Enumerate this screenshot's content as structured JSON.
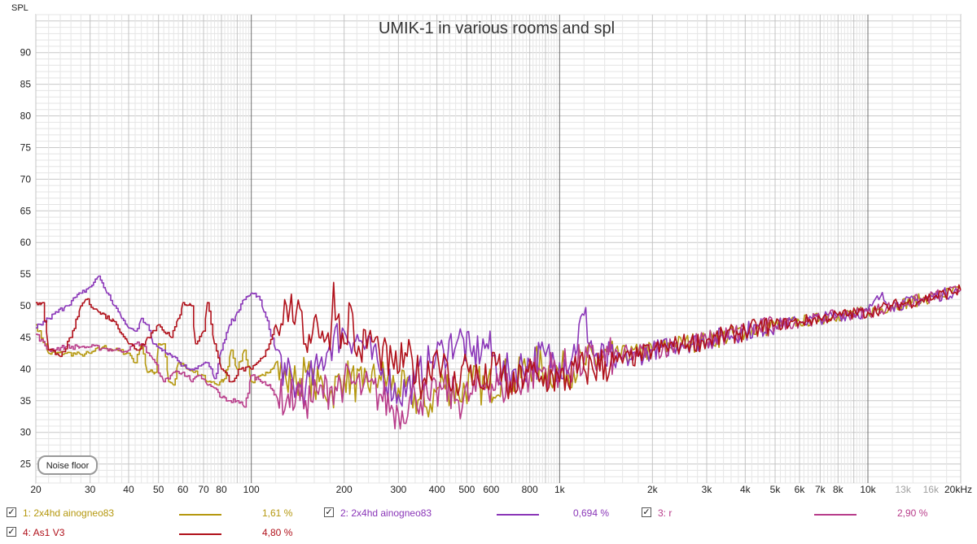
{
  "chart_data": {
    "type": "line",
    "title": "UMIK-1 in various rooms and spl",
    "ylabel": "SPL",
    "xunit": "Hz",
    "xscale": "log",
    "xlim": [
      20,
      20000
    ],
    "ylim": [
      22,
      96
    ],
    "grid": true,
    "yticks": [
      25,
      30,
      35,
      40,
      45,
      50,
      55,
      60,
      65,
      70,
      75,
      80,
      85,
      90
    ],
    "xticks": [
      {
        "v": 20,
        "label": "20"
      },
      {
        "v": 30,
        "label": "30"
      },
      {
        "v": 40,
        "label": "40"
      },
      {
        "v": 50,
        "label": "50"
      },
      {
        "v": 60,
        "label": "60"
      },
      {
        "v": 70,
        "label": "70"
      },
      {
        "v": 80,
        "label": "80"
      },
      {
        "v": 100,
        "label": "100"
      },
      {
        "v": 200,
        "label": "200"
      },
      {
        "v": 300,
        "label": "300"
      },
      {
        "v": 400,
        "label": "400"
      },
      {
        "v": 500,
        "label": "500"
      },
      {
        "v": 600,
        "label": "600"
      },
      {
        "v": 800,
        "label": "800"
      },
      {
        "v": 1000,
        "label": "1k"
      },
      {
        "v": 2000,
        "label": "2k"
      },
      {
        "v": 3000,
        "label": "3k"
      },
      {
        "v": 4000,
        "label": "4k"
      },
      {
        "v": 5000,
        "label": "5k"
      },
      {
        "v": 6000,
        "label": "6k"
      },
      {
        "v": 7000,
        "label": "7k"
      },
      {
        "v": 8000,
        "label": "8k"
      },
      {
        "v": 10000,
        "label": "10k"
      },
      {
        "v": 13000,
        "label": "13k",
        "dim": true
      },
      {
        "v": 16000,
        "label": "16k",
        "dim": true
      },
      {
        "v": 20000,
        "label": "20kHz"
      }
    ],
    "annotation": "Noise floor",
    "series": [
      {
        "id": 1,
        "name": "1: 2x4hd ainogneo83",
        "value_label": "1,61 %",
        "color": "#b5980f",
        "points": [
          [
            20,
            47
          ],
          [
            22,
            42.5
          ],
          [
            25,
            42.5
          ],
          [
            28,
            42.3
          ],
          [
            30,
            42.5
          ],
          [
            33,
            43.5
          ],
          [
            36,
            43
          ],
          [
            40,
            42.5
          ],
          [
            42,
            41
          ],
          [
            44,
            44
          ],
          [
            46,
            39.5
          ],
          [
            49,
            39.5
          ],
          [
            50,
            44
          ],
          [
            52,
            44
          ],
          [
            54,
            38
          ],
          [
            56,
            37.5
          ],
          [
            58,
            41
          ],
          [
            62,
            40
          ],
          [
            65,
            39.5
          ],
          [
            68,
            39
          ],
          [
            70,
            39
          ],
          [
            72,
            38
          ],
          [
            75,
            38
          ],
          [
            78,
            37.5
          ],
          [
            82,
            38.5
          ],
          [
            86,
            43
          ],
          [
            90,
            40
          ],
          [
            95,
            43
          ],
          [
            100,
            38
          ],
          [
            110,
            39
          ],
          [
            120,
            41
          ],
          [
            130,
            38
          ],
          [
            140,
            38
          ],
          [
            150,
            39.5
          ],
          [
            160,
            37
          ],
          [
            170,
            38
          ],
          [
            180,
            36
          ],
          [
            200,
            39
          ],
          [
            230,
            37
          ],
          [
            260,
            39
          ],
          [
            300,
            37
          ],
          [
            330,
            36
          ],
          [
            370,
            34
          ],
          [
            420,
            38
          ],
          [
            470,
            36
          ],
          [
            520,
            38
          ],
          [
            580,
            37
          ],
          [
            650,
            39
          ],
          [
            720,
            38
          ],
          [
            800,
            41
          ],
          [
            900,
            40
          ],
          [
            1000,
            39.5
          ],
          [
            1200,
            41
          ],
          [
            1500,
            42
          ],
          [
            1800,
            42.5
          ],
          [
            2000,
            43
          ],
          [
            2500,
            44
          ],
          [
            3000,
            44.5
          ],
          [
            4000,
            46
          ],
          [
            5000,
            47
          ],
          [
            6000,
            47.5
          ],
          [
            7000,
            48
          ],
          [
            8000,
            48.5
          ],
          [
            10000,
            49
          ],
          [
            12000,
            50
          ],
          [
            15000,
            51
          ],
          [
            20000,
            52.5
          ]
        ]
      },
      {
        "id": 2,
        "name": "2: 2x4hd ainogneo83",
        "value_label": "0,694 %",
        "color": "#8a36b8",
        "points": [
          [
            20,
            46.5
          ],
          [
            22,
            48
          ],
          [
            25,
            50
          ],
          [
            28,
            52
          ],
          [
            30,
            53
          ],
          [
            32,
            54.7
          ],
          [
            34,
            52
          ],
          [
            36,
            50
          ],
          [
            38,
            48
          ],
          [
            40,
            46.5
          ],
          [
            42,
            46
          ],
          [
            44,
            48
          ],
          [
            46,
            47
          ],
          [
            48,
            44
          ],
          [
            52,
            43
          ],
          [
            56,
            42
          ],
          [
            60,
            40.5
          ],
          [
            64,
            40
          ],
          [
            68,
            40.5
          ],
          [
            72,
            41
          ],
          [
            76,
            38.5
          ],
          [
            80,
            43
          ],
          [
            85,
            47
          ],
          [
            90,
            49
          ],
          [
            95,
            51
          ],
          [
            100,
            52
          ],
          [
            105,
            51.5
          ],
          [
            110,
            49
          ],
          [
            120,
            43
          ],
          [
            130,
            39
          ],
          [
            140,
            37
          ],
          [
            150,
            37
          ],
          [
            165,
            40
          ],
          [
            180,
            44
          ],
          [
            200,
            46
          ],
          [
            230,
            44
          ],
          [
            260,
            40
          ],
          [
            300,
            36
          ],
          [
            340,
            38
          ],
          [
            380,
            41
          ],
          [
            420,
            43
          ],
          [
            470,
            45
          ],
          [
            520,
            42
          ],
          [
            580,
            44
          ],
          [
            650,
            39
          ],
          [
            720,
            40
          ],
          [
            800,
            41
          ],
          [
            900,
            42
          ],
          [
            1000,
            41
          ],
          [
            1100,
            42
          ],
          [
            1200,
            48.5
          ],
          [
            1300,
            42
          ],
          [
            1500,
            41
          ],
          [
            1800,
            42
          ],
          [
            2000,
            43
          ],
          [
            2500,
            44
          ],
          [
            3000,
            44.5
          ],
          [
            4000,
            46
          ],
          [
            5000,
            47
          ],
          [
            6000,
            47.5
          ],
          [
            7000,
            48
          ],
          [
            8000,
            48.5
          ],
          [
            10000,
            49
          ],
          [
            10300,
            50
          ],
          [
            11000,
            51.5
          ],
          [
            12000,
            50
          ],
          [
            15000,
            51
          ],
          [
            20000,
            52.5
          ]
        ]
      },
      {
        "id": 3,
        "name": "3: r",
        "value_label": "2,90 %",
        "color": "#b83c8a",
        "points": [
          [
            20,
            45.5
          ],
          [
            22,
            43
          ],
          [
            25,
            43.5
          ],
          [
            28,
            43.5
          ],
          [
            30,
            43.5
          ],
          [
            33,
            43.3
          ],
          [
            36,
            43
          ],
          [
            40,
            43
          ],
          [
            42,
            44
          ],
          [
            44,
            44
          ],
          [
            48,
            41.5
          ],
          [
            52,
            38
          ],
          [
            56,
            39.5
          ],
          [
            60,
            39.5
          ],
          [
            64,
            38
          ],
          [
            68,
            39
          ],
          [
            72,
            37.5
          ],
          [
            76,
            37
          ],
          [
            80,
            35.5
          ],
          [
            85,
            35
          ],
          [
            90,
            35
          ],
          [
            95,
            34
          ],
          [
            100,
            39
          ],
          [
            110,
            38
          ],
          [
            120,
            36
          ],
          [
            130,
            35
          ],
          [
            140,
            36
          ],
          [
            150,
            35
          ],
          [
            165,
            36
          ],
          [
            180,
            37
          ],
          [
            200,
            38
          ],
          [
            230,
            37
          ],
          [
            260,
            36
          ],
          [
            300,
            33
          ],
          [
            340,
            36
          ],
          [
            380,
            35
          ],
          [
            420,
            37
          ],
          [
            470,
            35
          ],
          [
            520,
            36
          ],
          [
            580,
            38
          ],
          [
            650,
            37
          ],
          [
            720,
            38
          ],
          [
            800,
            39
          ],
          [
            900,
            40
          ],
          [
            1000,
            40
          ],
          [
            1200,
            41
          ],
          [
            1500,
            42
          ],
          [
            1800,
            42.5
          ],
          [
            2000,
            43
          ],
          [
            2500,
            44
          ],
          [
            3000,
            44.5
          ],
          [
            4000,
            46
          ],
          [
            5000,
            47
          ],
          [
            6000,
            47.5
          ],
          [
            7000,
            48
          ],
          [
            8000,
            48.5
          ],
          [
            10000,
            49
          ],
          [
            12000,
            50
          ],
          [
            15000,
            51
          ],
          [
            20000,
            52.5
          ]
        ]
      },
      {
        "id": 4,
        "name": "4: As1 V3",
        "value_label": "4,80 %",
        "color": "#b0101a",
        "points": [
          [
            20,
            50.5
          ],
          [
            21,
            50.5
          ],
          [
            22,
            43
          ],
          [
            24,
            42
          ],
          [
            26,
            45
          ],
          [
            28,
            50
          ],
          [
            29,
            51
          ],
          [
            32,
            49
          ],
          [
            36,
            47.5
          ],
          [
            40,
            44
          ],
          [
            43,
            43
          ],
          [
            46,
            45
          ],
          [
            50,
            47
          ],
          [
            55,
            45
          ],
          [
            58,
            48
          ],
          [
            60,
            50.5
          ],
          [
            64,
            50
          ],
          [
            66,
            44
          ],
          [
            70,
            46
          ],
          [
            72,
            50.5
          ],
          [
            76,
            44
          ],
          [
            80,
            40
          ],
          [
            86,
            38
          ],
          [
            92,
            40
          ],
          [
            100,
            40
          ],
          [
            110,
            42
          ],
          [
            120,
            47
          ],
          [
            130,
            50
          ],
          [
            140,
            49
          ],
          [
            150,
            44
          ],
          [
            160,
            48
          ],
          [
            170,
            46
          ],
          [
            180,
            43
          ],
          [
            185,
            53.7
          ],
          [
            190,
            48
          ],
          [
            200,
            44
          ],
          [
            210,
            50
          ],
          [
            220,
            42
          ],
          [
            240,
            45
          ],
          [
            260,
            43
          ],
          [
            290,
            40
          ],
          [
            320,
            42
          ],
          [
            360,
            38
          ],
          [
            400,
            43
          ],
          [
            450,
            37
          ],
          [
            500,
            41
          ],
          [
            560,
            37
          ],
          [
            630,
            41
          ],
          [
            700,
            36
          ],
          [
            780,
            40
          ],
          [
            860,
            38
          ],
          [
            950,
            39
          ],
          [
            1000,
            38
          ],
          [
            1200,
            40
          ],
          [
            1500,
            41
          ],
          [
            1800,
            42
          ],
          [
            2000,
            43
          ],
          [
            2500,
            44
          ],
          [
            3000,
            44.5
          ],
          [
            4000,
            46
          ],
          [
            5000,
            47
          ],
          [
            6000,
            47.5
          ],
          [
            7000,
            48
          ],
          [
            8000,
            48.5
          ],
          [
            10000,
            49
          ],
          [
            12000,
            50
          ],
          [
            15000,
            51
          ],
          [
            20000,
            52.5
          ]
        ]
      }
    ]
  },
  "legend": [
    {
      "id": 1,
      "check": "✓",
      "label": "1: 2x4hd ainogneo83",
      "value": "1,61 %",
      "color": "#b5980f"
    },
    {
      "id": 2,
      "check": "✓",
      "label": "2: 2x4hd ainogneo83",
      "value": "0,694 %",
      "color": "#8a36b8"
    },
    {
      "id": 3,
      "check": "✓",
      "label": "3: r",
      "value": "2,90 %",
      "color": "#b83c8a"
    },
    {
      "id": 4,
      "check": "✓",
      "label": "4: As1 V3",
      "value": "4,80 %",
      "color": "#b0101a"
    }
  ]
}
